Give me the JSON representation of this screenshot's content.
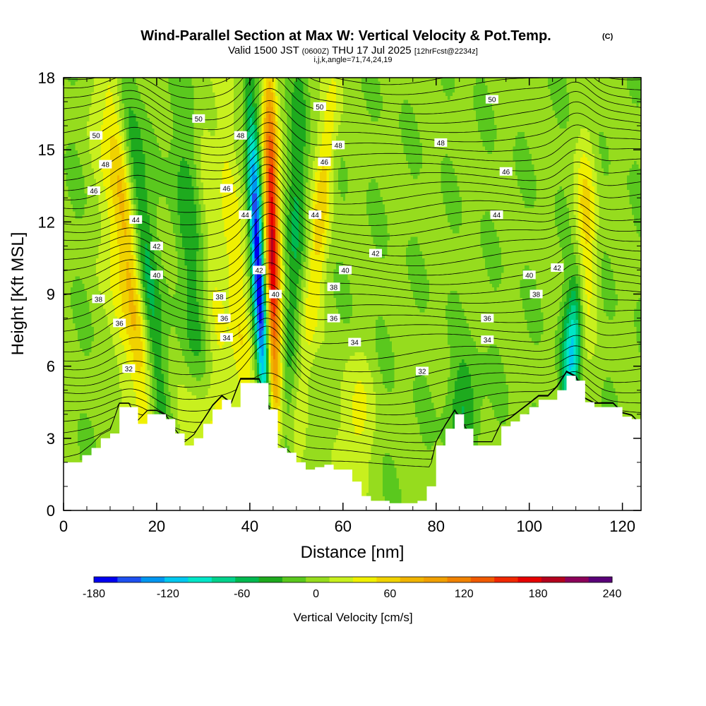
{
  "chart_data": {
    "type": "heatmap",
    "title": "Wind-Parallel Section at Max W: Vertical Velocity & Pot.Temp.",
    "title_mark": "(C)",
    "subtitle": {
      "a": "Valid 1500 JST",
      "b": "(0600Z)",
      "c": "THU 17 Jul 2025",
      "d": "[12hrFcst@2234z]"
    },
    "subtitle2": "i,j,k,angle=71,74,24,19",
    "xlabel": "Distance [nm]",
    "ylabel": "Height [Kft MSL]",
    "xlim": [
      0,
      124
    ],
    "ylim": [
      0,
      18
    ],
    "x_ticks": [
      "0",
      "20",
      "40",
      "60",
      "80",
      "100",
      "120"
    ],
    "y_ticks": [
      "0",
      "3",
      "6",
      "9",
      "12",
      "15",
      "18"
    ],
    "colorbar": {
      "label": "Vertical Velocity [cm/s]",
      "range": [
        -180,
        240
      ],
      "step": 20,
      "tick_labels": [
        "-180",
        "-120",
        "-60",
        "0",
        "60",
        "120",
        "180",
        "240"
      ],
      "colors": [
        "#0000f0",
        "#1e50f0",
        "#0096f0",
        "#00c8f0",
        "#00e6c8",
        "#00d28c",
        "#00b950",
        "#1eaa1e",
        "#5ac81e",
        "#96dc1e",
        "#c8f01e",
        "#f0f000",
        "#f0d200",
        "#f0b400",
        "#f0a000",
        "#f08200",
        "#f05a00",
        "#f02800",
        "#e60000",
        "#b4001e",
        "#8c005a",
        "#5a0078"
      ]
    },
    "theta_contours": {
      "unit": "K-labels as printed",
      "levels": [
        32,
        34,
        36,
        38,
        40,
        42,
        44,
        46,
        48,
        50
      ],
      "labels": [
        {
          "x": 7,
          "y": 15.6,
          "t": "50"
        },
        {
          "x": 29,
          "y": 16.3,
          "t": "50"
        },
        {
          "x": 55,
          "y": 16.8,
          "t": "50"
        },
        {
          "x": 92,
          "y": 17.1,
          "t": "50"
        },
        {
          "x": 9,
          "y": 14.4,
          "t": "48"
        },
        {
          "x": 38,
          "y": 15.6,
          "t": "48"
        },
        {
          "x": 59,
          "y": 15.2,
          "t": "48"
        },
        {
          "x": 81,
          "y": 15.3,
          "t": "48"
        },
        {
          "x": 6.5,
          "y": 13.3,
          "t": "46"
        },
        {
          "x": 35,
          "y": 13.4,
          "t": "46"
        },
        {
          "x": 56,
          "y": 14.5,
          "t": "46"
        },
        {
          "x": 95,
          "y": 14.1,
          "t": "46"
        },
        {
          "x": 15.5,
          "y": 12.1,
          "t": "44"
        },
        {
          "x": 39,
          "y": 12.3,
          "t": "44"
        },
        {
          "x": 54,
          "y": 12.3,
          "t": "44"
        },
        {
          "x": 93,
          "y": 12.3,
          "t": "44"
        },
        {
          "x": 20,
          "y": 11.0,
          "t": "42"
        },
        {
          "x": 67,
          "y": 10.7,
          "t": "42"
        },
        {
          "x": 106,
          "y": 10.1,
          "t": "42"
        },
        {
          "x": 20,
          "y": 9.8,
          "t": "40"
        },
        {
          "x": 45.5,
          "y": 9.0,
          "t": "40"
        },
        {
          "x": 60.5,
          "y": 10.0,
          "t": "40"
        },
        {
          "x": 100,
          "y": 9.8,
          "t": "40"
        },
        {
          "x": 7.5,
          "y": 8.8,
          "t": "38"
        },
        {
          "x": 33.5,
          "y": 8.9,
          "t": "38"
        },
        {
          "x": 58,
          "y": 9.3,
          "t": "38"
        },
        {
          "x": 101.5,
          "y": 9.0,
          "t": "38"
        },
        {
          "x": 12,
          "y": 7.8,
          "t": "36"
        },
        {
          "x": 34.5,
          "y": 8.0,
          "t": "36"
        },
        {
          "x": 58,
          "y": 8.0,
          "t": "36"
        },
        {
          "x": 91,
          "y": 8.0,
          "t": "36"
        },
        {
          "x": 35,
          "y": 7.2,
          "t": "34"
        },
        {
          "x": 62.5,
          "y": 7.0,
          "t": "34"
        },
        {
          "x": 91,
          "y": 7.1,
          "t": "34"
        },
        {
          "x": 14,
          "y": 5.9,
          "t": "32"
        },
        {
          "x": 77,
          "y": 5.8,
          "t": "32"
        },
        {
          "x": 42,
          "y": 10.0,
          "t": "42"
        }
      ]
    },
    "terrain": {
      "x": [
        0,
        2,
        4,
        6,
        8,
        10,
        12,
        14,
        16,
        18,
        20,
        22,
        24,
        26,
        28,
        30,
        32,
        34,
        36,
        38,
        40,
        42,
        44,
        46,
        48,
        50,
        52,
        54,
        56,
        58,
        60,
        62,
        64,
        66,
        68,
        70,
        72,
        74,
        76,
        78,
        80,
        82,
        84,
        86,
        88,
        90,
        92,
        94,
        96,
        98,
        100,
        102,
        104,
        106,
        108,
        110,
        112,
        114,
        116,
        118,
        120,
        122,
        124
      ],
      "h": [
        2.0,
        2.0,
        2.3,
        2.6,
        3.0,
        3.2,
        4.3,
        4.3,
        3.6,
        4.0,
        4.0,
        3.8,
        3.2,
        2.7,
        3.0,
        3.6,
        4.2,
        4.6,
        4.3,
        5.3,
        5.3,
        5.3,
        4.2,
        2.6,
        2.4,
        2.0,
        1.7,
        1.8,
        1.9,
        1.7,
        1.7,
        1.2,
        0.6,
        0.4,
        0.4,
        0.3,
        0.3,
        0.3,
        0.4,
        1.0,
        2.7,
        3.4,
        4.0,
        3.4,
        2.7,
        2.7,
        2.7,
        3.5,
        3.7,
        4.0,
        4.3,
        4.6,
        4.6,
        5.0,
        5.6,
        5.4,
        4.5,
        4.3,
        4.3,
        4.3,
        3.9,
        3.8,
        3.4
      ]
    },
    "grid": false,
    "legend": "bottom colorbar"
  }
}
